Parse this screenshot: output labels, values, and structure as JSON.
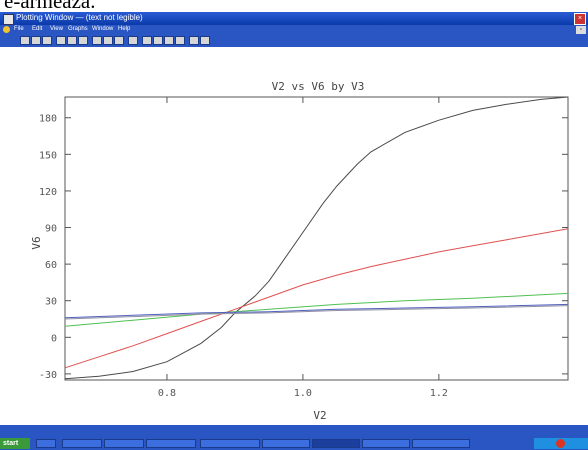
{
  "caption_text": "e-armează.",
  "window": {
    "title": "Plotting Window — (text not legible)",
    "menu": [
      "File",
      "Edit",
      "View",
      "Graphs",
      "Window",
      "Help"
    ]
  },
  "toolbar": {
    "icons": [
      "new-icon",
      "open-icon",
      "save-icon",
      "print-icon",
      "cut-icon",
      "copy-icon",
      "paste-icon",
      "zoom-icon",
      "grid-icon",
      "select-icon",
      "line-icon",
      "text-icon",
      "legend-icon",
      "axis-icon"
    ]
  },
  "status": {
    "left": "",
    "right": ""
  },
  "taskbar": {
    "start_label": "start",
    "tasks": [
      "",
      "",
      "",
      "",
      "",
      "",
      "",
      ""
    ]
  },
  "chart_data": {
    "type": "line",
    "title": "V2 vs V6 by V3",
    "xlabel": "V2",
    "ylabel": "V6",
    "xlim": [
      0.65,
      1.39
    ],
    "ylim": [
      -35,
      197
    ],
    "xticks": [
      0.8,
      1.0,
      1.2
    ],
    "xtick_labels": [
      "0.8",
      "1.0",
      "1.2"
    ],
    "yticks": [
      -30,
      0,
      30,
      60,
      90,
      120,
      150,
      180
    ],
    "ytick_labels": [
      "-30",
      "0",
      "30",
      "60",
      "90",
      "120",
      "150",
      "180"
    ],
    "grid": false,
    "series": [
      {
        "color": "#4a4a4a",
        "x": [
          0.65,
          0.7,
          0.75,
          0.8,
          0.85,
          0.88,
          0.9,
          0.93,
          0.95,
          0.97,
          1.0,
          1.03,
          1.05,
          1.08,
          1.1,
          1.15,
          1.2,
          1.25,
          1.3,
          1.35,
          1.39
        ],
        "y": [
          -34,
          -32,
          -28,
          -20,
          -5,
          8,
          20,
          34,
          46,
          62,
          86,
          110,
          124,
          142,
          152,
          168,
          178,
          186,
          191,
          195,
          197
        ]
      },
      {
        "color": "#e05050",
        "x": [
          0.65,
          0.7,
          0.75,
          0.8,
          0.85,
          0.9,
          0.95,
          1.0,
          1.05,
          1.1,
          1.15,
          1.2,
          1.25,
          1.3,
          1.35,
          1.39
        ],
        "y": [
          -25,
          -16,
          -7,
          3,
          13,
          23,
          33,
          43,
          51,
          58,
          64,
          70,
          75,
          80,
          85,
          89
        ]
      },
      {
        "color": "#50c050",
        "x": [
          0.65,
          0.75,
          0.85,
          0.95,
          1.05,
          1.15,
          1.25,
          1.39
        ],
        "y": [
          9,
          14,
          19,
          23,
          27,
          30,
          32,
          36
        ]
      },
      {
        "color": "#5060c0",
        "x": [
          0.65,
          0.75,
          0.85,
          0.95,
          1.05,
          1.15,
          1.25,
          1.39
        ],
        "y": [
          16,
          18,
          20,
          21,
          23,
          24,
          25,
          27
        ]
      },
      {
        "color": "#9090a0",
        "x": [
          0.65,
          0.75,
          0.85,
          0.95,
          1.05,
          1.15,
          1.25,
          1.39
        ],
        "y": [
          15,
          17,
          19,
          20,
          22,
          23,
          24,
          26
        ]
      }
    ]
  }
}
